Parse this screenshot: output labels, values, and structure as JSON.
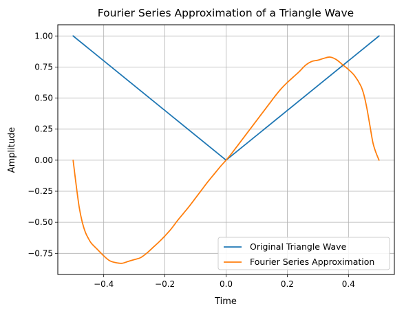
{
  "chart_data": {
    "type": "line",
    "title": "Fourier Series Approximation of a Triangle Wave",
    "xlabel": "Time",
    "ylabel": "Amplitude",
    "xlim": [
      -0.55,
      0.55
    ],
    "ylim": [
      -0.92,
      1.09
    ],
    "xticks": [
      -0.4,
      -0.2,
      0.0,
      0.2,
      0.4
    ],
    "xtick_labels": [
      "−0.4",
      "−0.2",
      "0.0",
      "0.2",
      "0.4"
    ],
    "yticks": [
      -0.75,
      -0.5,
      -0.25,
      0.0,
      0.25,
      0.5,
      0.75,
      1.0
    ],
    "ytick_labels": [
      "−0.75",
      "−0.50",
      "−0.25",
      "0.00",
      "0.25",
      "0.50",
      "0.75",
      "1.00"
    ],
    "grid": true,
    "legend_position": "lower-right",
    "series": [
      {
        "name": "Original Triangle Wave",
        "color": "#1f77b4",
        "x": [
          -0.5,
          0.0,
          0.5
        ],
        "y": [
          1.0,
          0.0,
          1.0
        ]
      },
      {
        "name": "Fourier Series Approximation",
        "color": "#ff7f0e",
        "x": [
          -0.5,
          -0.49,
          -0.48,
          -0.47,
          -0.46,
          -0.45,
          -0.44,
          -0.42,
          -0.4,
          -0.38,
          -0.36,
          -0.34,
          -0.32,
          -0.3,
          -0.28,
          -0.26,
          -0.24,
          -0.22,
          -0.2,
          -0.18,
          -0.16,
          -0.14,
          -0.12,
          -0.1,
          -0.08,
          -0.06,
          -0.04,
          -0.02,
          0.0,
          0.02,
          0.04,
          0.06,
          0.08,
          0.1,
          0.12,
          0.14,
          0.16,
          0.18,
          0.2,
          0.22,
          0.24,
          0.26,
          0.28,
          0.3,
          0.32,
          0.34,
          0.36,
          0.38,
          0.4,
          0.42,
          0.44,
          0.45,
          0.46,
          0.47,
          0.48,
          0.49,
          0.5
        ],
        "y": [
          0.0,
          -0.2,
          -0.38,
          -0.5,
          -0.58,
          -0.63,
          -0.67,
          -0.72,
          -0.77,
          -0.81,
          -0.825,
          -0.83,
          -0.815,
          -0.8,
          -0.785,
          -0.75,
          -0.705,
          -0.66,
          -0.61,
          -0.555,
          -0.49,
          -0.43,
          -0.37,
          -0.305,
          -0.24,
          -0.175,
          -0.115,
          -0.055,
          0.0,
          0.06,
          0.125,
          0.19,
          0.255,
          0.32,
          0.385,
          0.45,
          0.515,
          0.575,
          0.625,
          0.67,
          0.715,
          0.765,
          0.795,
          0.805,
          0.82,
          0.83,
          0.81,
          0.77,
          0.73,
          0.68,
          0.6,
          0.53,
          0.42,
          0.28,
          0.14,
          0.06,
          0.0
        ]
      }
    ]
  }
}
